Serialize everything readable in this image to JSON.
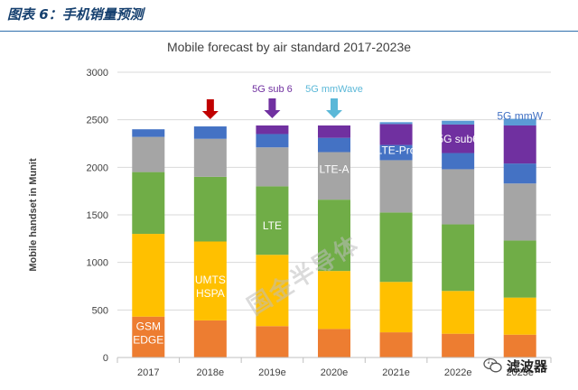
{
  "caption": "图表 6：手机销量预测",
  "watermark": "国金半导体",
  "wechat_account": "滤波器",
  "colors": {
    "caption_line": "#2f6fad",
    "GSM_EDGE": "#ed7d31",
    "UMTS_HSPA": "#ffc000",
    "LTE": "#70ad47",
    "LTE-A": "#a5a5a5",
    "LTE-Pro": "#4472c4",
    "5G_sub6": "#7030a0",
    "5G_mmWave": "#5b9bd5",
    "arrow_red": "#c00000",
    "arrow_purple": "#7030a0",
    "arrow_cyan": "#5bb8d8"
  },
  "chart_data": {
    "type": "bar",
    "stacked": true,
    "title": "Mobile forecast by air standard 2017-2023e",
    "ylabel": "Mobile handset in Munit",
    "xlabel": "",
    "ylim": [
      0,
      3000
    ],
    "yticks": [
      0,
      500,
      1000,
      1500,
      2000,
      2500,
      3000
    ],
    "grid": true,
    "categories": [
      "2017",
      "2018e",
      "2019e",
      "2020e",
      "2021e",
      "2022e",
      "2023e"
    ],
    "series": [
      {
        "name": "GSM EDGE",
        "color": "#ed7d31",
        "values": [
          430,
          390,
          330,
          300,
          265,
          250,
          240
        ]
      },
      {
        "name": "UMTS HSPA",
        "color": "#ffc000",
        "values": [
          870,
          830,
          750,
          610,
          530,
          450,
          390
        ]
      },
      {
        "name": "LTE",
        "color": "#70ad47",
        "values": [
          650,
          680,
          720,
          750,
          730,
          700,
          600
        ]
      },
      {
        "name": "LTE-A",
        "color": "#a5a5a5",
        "values": [
          370,
          400,
          410,
          500,
          550,
          580,
          600
        ]
      },
      {
        "name": "LTE-Pro",
        "color": "#4472c4",
        "values": [
          80,
          130,
          140,
          150,
          160,
          170,
          210
        ]
      },
      {
        "name": "5G sub6",
        "color": "#7030a0",
        "values": [
          0,
          0,
          90,
          130,
          220,
          300,
          400
        ]
      },
      {
        "name": "5G mmWave",
        "color": "#5b9bd5",
        "values": [
          0,
          0,
          0,
          0,
          20,
          40,
          70
        ]
      }
    ],
    "series_labels": [
      {
        "text": "GSM\nEDGE",
        "category": "2017",
        "y": 290,
        "color": "#ffffff"
      },
      {
        "text": "UMTS\nHSPA",
        "category": "2018e",
        "y": 780,
        "color": "#ffffff"
      },
      {
        "text": "LTE",
        "category": "2019e",
        "y": 1350,
        "color": "#ffffff"
      },
      {
        "text": "LTE-A",
        "category": "2020e",
        "y": 1940,
        "color": "#ffffff"
      },
      {
        "text": "LTE-Pro",
        "category": "2021e",
        "y": 2140,
        "color": "#ffffff"
      },
      {
        "text": "5G sub6",
        "category": "2022e",
        "y": 2260,
        "color": "#ffffff"
      },
      {
        "text": "5G mmW",
        "category": "2023e",
        "y": 2500,
        "color": "#4472c4"
      }
    ],
    "annotations": [
      {
        "text": "",
        "category": "2018e",
        "arrow_color": "#c00000"
      },
      {
        "text": "5G sub 6",
        "category": "2019e",
        "arrow_color": "#7030a0",
        "text_color": "#7030a0"
      },
      {
        "text": "5G mmWave",
        "category": "2020e",
        "arrow_color": "#5bb8d8",
        "text_color": "#5bb8d8"
      }
    ]
  }
}
